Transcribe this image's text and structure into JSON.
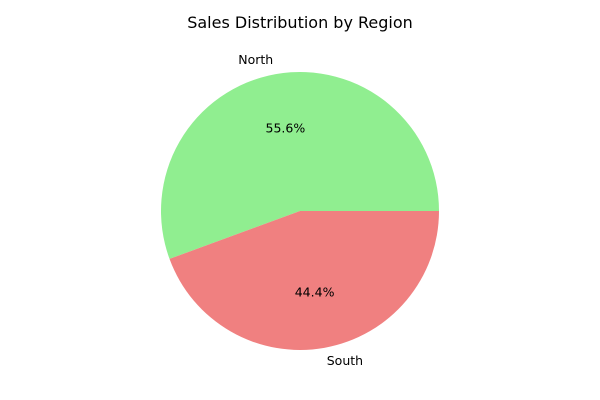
{
  "chart_data": {
    "type": "pie",
    "title": "Sales Distribution by Region",
    "categories": [
      "North",
      "South"
    ],
    "values": [
      55.6,
      44.4
    ],
    "labels": [
      "55.6%",
      "44.4%"
    ],
    "colors": [
      "#90ee90",
      "#f08080"
    ],
    "start_angle_deg": 0,
    "direction": "counterclockwise",
    "legend": "none"
  }
}
